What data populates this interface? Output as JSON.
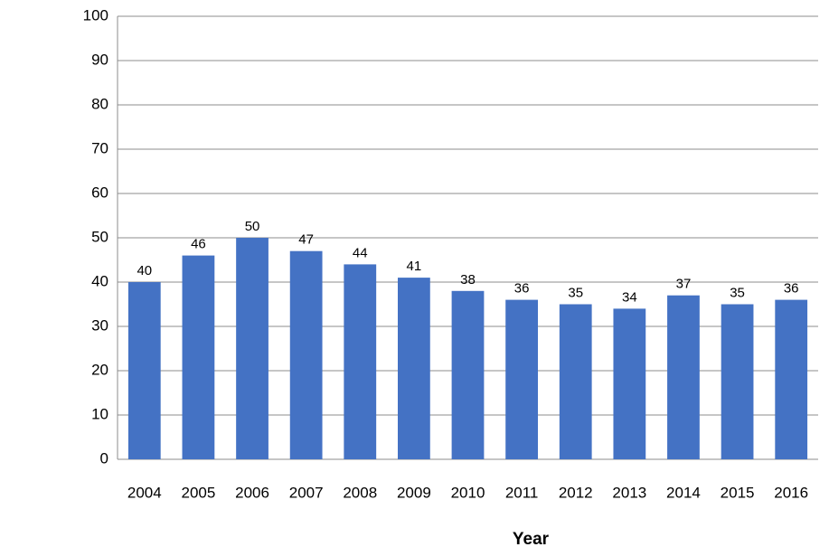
{
  "chart_data": {
    "type": "bar",
    "x_label": "Year",
    "categories": [
      "2004",
      "2005",
      "2006",
      "2007",
      "2008",
      "2009",
      "2010",
      "2011",
      "2012",
      "2013",
      "2014",
      "2015",
      "2016"
    ],
    "values": [
      40,
      46,
      50,
      47,
      44,
      41,
      38,
      36,
      35,
      34,
      37,
      35,
      36
    ],
    "color": "#4472c4",
    "ylim": [
      0,
      100
    ],
    "yticks": [
      0,
      10,
      20,
      30,
      40,
      50,
      60,
      70,
      80,
      90,
      100
    ],
    "grid": true
  }
}
